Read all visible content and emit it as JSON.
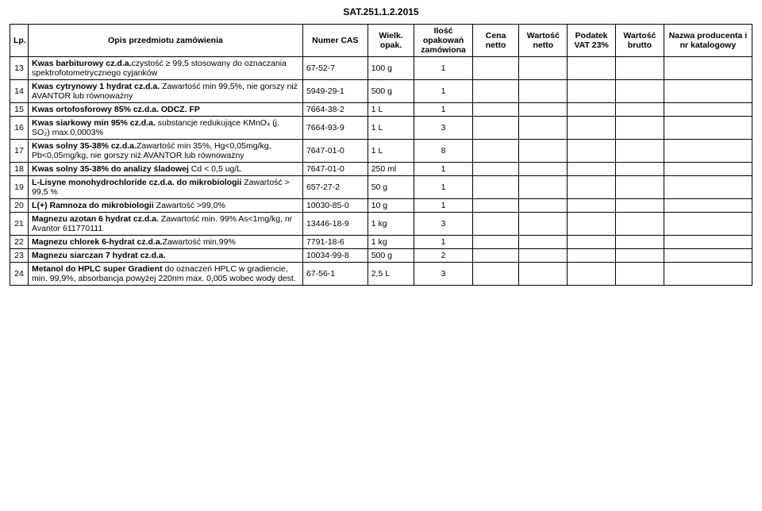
{
  "document": {
    "title": "SAT.251.1.2.2015"
  },
  "headers": {
    "lp": "Lp.",
    "desc": "Opis przedmiotu zamówienia",
    "cas": "Numer CAS",
    "wielk": "Wielk. opak.",
    "ilosc": "Ilość opakowań zamówiona",
    "cena": "Cena netto",
    "wn": "Wartość netto",
    "vat": "Podatek VAT 23%",
    "wb": "Wartość brutto",
    "naz": "Nazwa producenta i nr katalogowy"
  },
  "rows": [
    {
      "lp": "13",
      "desc_b": "Kwas barbiturowy cz.d.a.",
      "desc_r": "czystość ≥ 99,5 stosowany do oznaczania spektrofotometrycznego cyjanków",
      "cas": "67-52-7",
      "wielk": "100 g",
      "ilosc": "1"
    },
    {
      "lp": "14",
      "desc_b": "Kwas cytrynowy  1 hydrat cz.d.a.",
      "desc_r": " Zawartość min 99,5%, nie gorszy niż AVANTOR lub równoważny",
      "cas": "5949-29-1",
      "wielk": "500 g",
      "ilosc": "1"
    },
    {
      "lp": "15",
      "desc_b": "Kwas ortofosforowy 85% cz.d.a. ODCZ. FP",
      "desc_r": "",
      "cas": "7664-38-2",
      "wielk": "1 L",
      "ilosc": "1"
    },
    {
      "lp": "16",
      "desc_b": "Kwas siarkowy min 95% cz.d.a.",
      "desc_r": " substancje redukujące KMnO₄ (j. SO₂) max.0,0003%",
      "cas": "7664-93-9",
      "wielk": "1 L",
      "ilosc": "3"
    },
    {
      "lp": "17",
      "desc_b": "Kwas solny 35-38% cz.d.a.",
      "desc_r": "Zawartość min 35%, Hg<0,05mg/kg, Pb<0,05mg/kg, nie gorszy niż AVANTOR lub równoważny",
      "cas": "7647-01-0",
      "wielk": "1 L",
      "ilosc": "8"
    },
    {
      "lp": "18",
      "desc_b": "Kwas solny 35-38% do analizy śladowej",
      "desc_r": " Cd < 0,5 ug/L",
      "cas": "7647-01-0",
      "wielk": "250 ml",
      "ilosc": "1"
    },
    {
      "lp": "19",
      "desc_b": "L-Lisyne monohydrochloride cz.d.a. do mikrobiologii",
      "desc_r": " Zawartość > 99,5 %",
      "cas": "657-27-2",
      "wielk": "50 g",
      "ilosc": "1"
    },
    {
      "lp": "20",
      "desc_b": "L(+) Ramnoza do mikrobiologii",
      "desc_r": " Zawartość >99,0%",
      "cas": "10030-85-0",
      "wielk": "10 g",
      "ilosc": "1"
    },
    {
      "lp": "21",
      "desc_b": "Magnezu azotan 6 hydrat cz.d.a.",
      "desc_r": " Zawartość min. 99% As<1mg/kg,  nr Avantor 611770111",
      "cas": "13446-18-9",
      "wielk": "1 kg",
      "ilosc": "3"
    },
    {
      "lp": "22",
      "desc_b": "Magnezu chlorek 6-hydrat cz.d.a.",
      "desc_r": "Zawartość min.99%",
      "cas": "7791-18-6",
      "wielk": "1 kg",
      "ilosc": "1"
    },
    {
      "lp": "23",
      "desc_b": "Magnezu siarczan 7 hydrat cz.d.a.",
      "desc_r": "",
      "cas": "10034-99-8",
      "wielk": "500 g",
      "ilosc": "2"
    },
    {
      "lp": "24",
      "desc_b": "Metanol do HPLC super Gradient",
      "desc_r": " do oznaczeń HPLC w gradiencie, min. 99,9%, absorbancja powyżej 220nm max. 0,005 wobec wody dest.",
      "cas": "67-56-1",
      "wielk": "2,5 L",
      "ilosc": "3"
    }
  ]
}
